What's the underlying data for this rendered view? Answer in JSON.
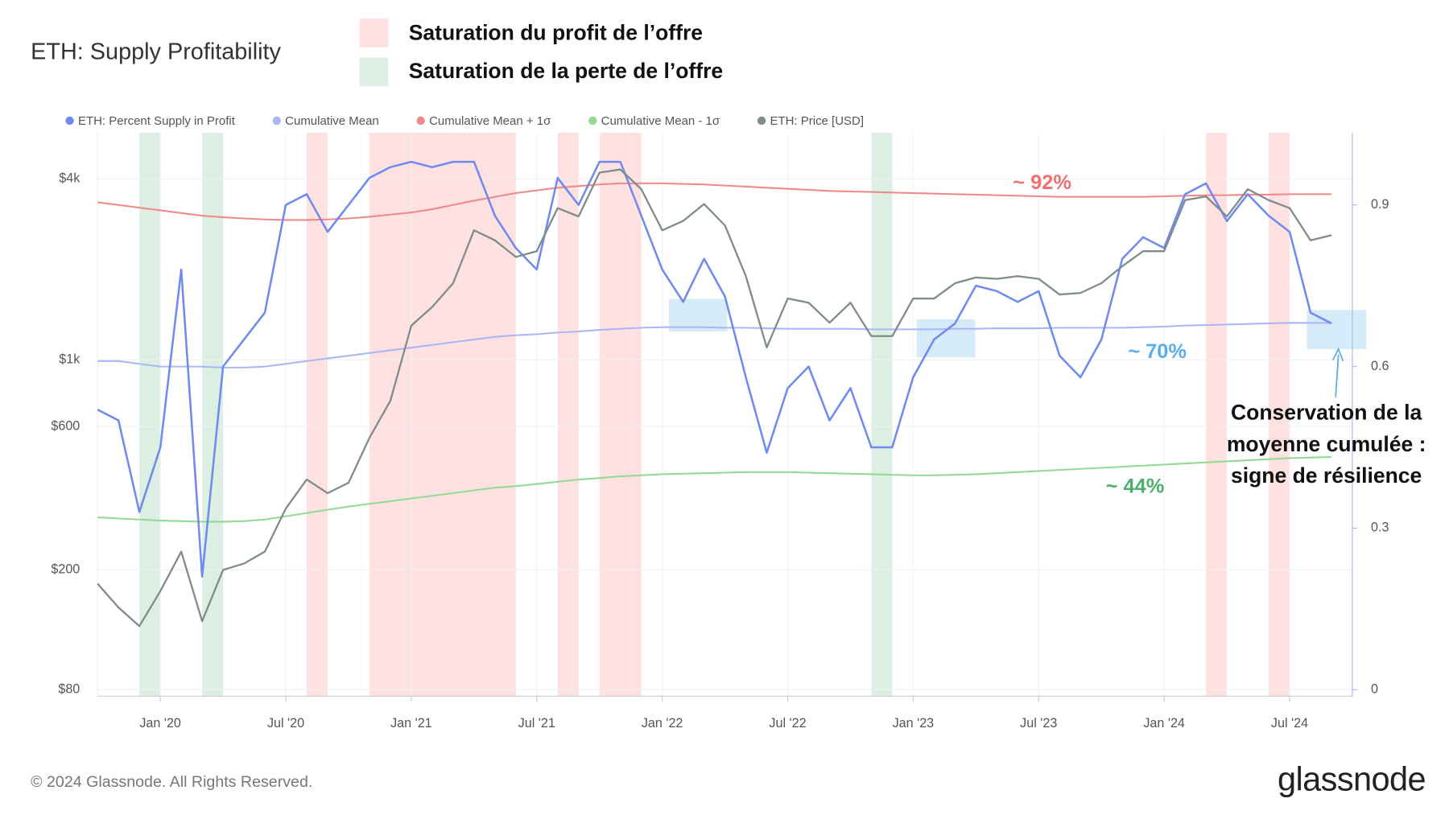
{
  "chart_data": {
    "type": "line",
    "title": "ETH: Supply Profitability",
    "x": [
      "2019-10",
      "2019-11",
      "2019-12",
      "2020-01",
      "2020-02",
      "2020-03",
      "2020-04",
      "2020-05",
      "2020-06",
      "2020-07",
      "2020-08",
      "2020-09",
      "2020-10",
      "2020-11",
      "2020-12",
      "2021-01",
      "2021-02",
      "2021-03",
      "2021-04",
      "2021-05",
      "2021-06",
      "2021-07",
      "2021-08",
      "2021-09",
      "2021-10",
      "2021-11",
      "2021-12",
      "2022-01",
      "2022-02",
      "2022-03",
      "2022-04",
      "2022-05",
      "2022-06",
      "2022-07",
      "2022-08",
      "2022-09",
      "2022-10",
      "2022-11",
      "2022-12",
      "2023-01",
      "2023-02",
      "2023-03",
      "2023-04",
      "2023-05",
      "2023-06",
      "2023-07",
      "2023-08",
      "2023-09",
      "2023-10",
      "2023-11",
      "2023-12",
      "2024-01",
      "2024-02",
      "2024-03",
      "2024-04",
      "2024-05",
      "2024-06",
      "2024-07",
      "2024-08",
      "2024-09"
    ],
    "series": [
      {
        "name": "Cumulative Mean + 1σ",
        "color": "#f08a8a",
        "axis": "y2",
        "values": [
          0.905,
          0.9,
          0.895,
          0.89,
          0.885,
          0.88,
          0.877,
          0.875,
          0.873,
          0.872,
          0.872,
          0.873,
          0.875,
          0.878,
          0.882,
          0.886,
          0.892,
          0.9,
          0.908,
          0.915,
          0.922,
          0.927,
          0.932,
          0.935,
          0.938,
          0.94,
          0.94,
          0.94,
          0.939,
          0.938,
          0.936,
          0.934,
          0.932,
          0.93,
          0.928,
          0.926,
          0.925,
          0.924,
          0.923,
          0.922,
          0.921,
          0.92,
          0.919,
          0.918,
          0.917,
          0.916,
          0.915,
          0.915,
          0.915,
          0.915,
          0.915,
          0.916,
          0.917,
          0.918,
          0.918,
          0.919,
          0.919,
          0.92,
          0.92,
          0.92
        ]
      },
      {
        "name": "Cumulative Mean - 1σ",
        "color": "#94d994",
        "axis": "y2",
        "values": [
          0.32,
          0.318,
          0.316,
          0.314,
          0.313,
          0.312,
          0.312,
          0.313,
          0.316,
          0.322,
          0.328,
          0.334,
          0.34,
          0.345,
          0.35,
          0.355,
          0.36,
          0.365,
          0.37,
          0.375,
          0.378,
          0.382,
          0.386,
          0.39,
          0.393,
          0.396,
          0.398,
          0.4,
          0.401,
          0.402,
          0.403,
          0.404,
          0.404,
          0.404,
          0.403,
          0.402,
          0.401,
          0.4,
          0.399,
          0.398,
          0.398,
          0.399,
          0.4,
          0.402,
          0.404,
          0.406,
          0.408,
          0.41,
          0.412,
          0.414,
          0.416,
          0.418,
          0.42,
          0.422,
          0.424,
          0.426,
          0.428,
          0.43,
          0.431,
          0.432
        ]
      },
      {
        "name": "Cumulative Mean",
        "color": "#aab6f5",
        "axis": "y2",
        "values": [
          0.61,
          0.61,
          0.605,
          0.6,
          0.6,
          0.6,
          0.598,
          0.598,
          0.6,
          0.605,
          0.61,
          0.615,
          0.62,
          0.625,
          0.63,
          0.635,
          0.64,
          0.645,
          0.65,
          0.655,
          0.658,
          0.66,
          0.663,
          0.665,
          0.668,
          0.67,
          0.672,
          0.673,
          0.673,
          0.673,
          0.672,
          0.672,
          0.671,
          0.67,
          0.67,
          0.67,
          0.67,
          0.669,
          0.669,
          0.669,
          0.669,
          0.67,
          0.67,
          0.671,
          0.671,
          0.671,
          0.672,
          0.672,
          0.672,
          0.672,
          0.673,
          0.674,
          0.676,
          0.677,
          0.678,
          0.679,
          0.68,
          0.681,
          0.681,
          0.681
        ]
      },
      {
        "name": "ETH: Percent Supply in Profit",
        "color": "#6f8af0",
        "axis": "y2",
        "values": [
          0.52,
          0.5,
          0.33,
          0.45,
          0.78,
          0.21,
          0.6,
          0.65,
          0.7,
          0.9,
          0.92,
          0.85,
          0.9,
          0.95,
          0.97,
          0.98,
          0.97,
          0.98,
          0.98,
          0.88,
          0.82,
          0.78,
          0.95,
          0.9,
          0.98,
          0.98,
          0.88,
          0.78,
          0.72,
          0.8,
          0.73,
          0.58,
          0.44,
          0.56,
          0.6,
          0.5,
          0.56,
          0.45,
          0.45,
          0.58,
          0.65,
          0.68,
          0.75,
          0.74,
          0.72,
          0.74,
          0.62,
          0.58,
          0.65,
          0.8,
          0.84,
          0.82,
          0.92,
          0.94,
          0.87,
          0.92,
          0.88,
          0.85,
          0.7,
          0.68
        ]
      },
      {
        "name": "ETH: Price [USD]",
        "color": "#7f8c8d",
        "axis": "y",
        "values": [
          180,
          150,
          130,
          170,
          230,
          135,
          200,
          210,
          230,
          320,
          400,
          360,
          390,
          550,
          730,
          1300,
          1500,
          1800,
          2700,
          2500,
          2200,
          2300,
          3200,
          3000,
          4200,
          4300,
          3700,
          2700,
          2900,
          3300,
          2800,
          1900,
          1100,
          1600,
          1550,
          1330,
          1550,
          1200,
          1200,
          1600,
          1600,
          1800,
          1880,
          1860,
          1900,
          1860,
          1650,
          1670,
          1800,
          2050,
          2300,
          2300,
          3400,
          3500,
          3000,
          3700,
          3400,
          3200,
          2500,
          2600
        ]
      }
    ],
    "legend_order": [
      3,
      2,
      0,
      1,
      4
    ],
    "xlim": [
      "2019-10",
      "2024-10"
    ],
    "xticks": [
      {
        "value": "2020-01",
        "label": "Jan '20"
      },
      {
        "value": "2020-07",
        "label": "Jul '20"
      },
      {
        "value": "2021-01",
        "label": "Jan '21"
      },
      {
        "value": "2021-07",
        "label": "Jul '21"
      },
      {
        "value": "2022-01",
        "label": "Jan '22"
      },
      {
        "value": "2022-07",
        "label": "Jul '22"
      },
      {
        "value": "2023-01",
        "label": "Jan '23"
      },
      {
        "value": "2023-07",
        "label": "Jul '23"
      },
      {
        "value": "2024-01",
        "label": "Jan '24"
      },
      {
        "value": "2024-07",
        "label": "Jul '24"
      }
    ],
    "ylim": [
      76,
      5700
    ],
    "log_y": true,
    "yticks": [
      {
        "value": 80,
        "label": "$80"
      },
      {
        "value": 200,
        "label": "$200"
      },
      {
        "value": 600,
        "label": "$600"
      },
      {
        "value": 1000,
        "label": "$1k"
      },
      {
        "value": 4000,
        "label": "$4k"
      }
    ],
    "y2lim": [
      -0.012,
      1.034
    ],
    "y2ticks": [
      0,
      0.3,
      0.6,
      0.9
    ],
    "grid": true,
    "highlights": [
      {
        "name": "Saturation du profit de l’offre",
        "color": "#ffe1e1",
        "ranges": [
          [
            "2020-08",
            "2020-09"
          ],
          [
            "2020-11",
            "2021-06"
          ],
          [
            "2021-08",
            "2021-09"
          ],
          [
            "2021-10",
            "2021-12"
          ],
          [
            "2024-03",
            "2024-04"
          ],
          [
            "2024-06",
            "2024-07"
          ]
        ]
      },
      {
        "name": "Saturation de la perte de l’offre",
        "color": "#dcefe3",
        "ranges": [
          [
            "2019-12",
            "2020-01"
          ],
          [
            "2020-03",
            "2020-04"
          ],
          [
            "2022-11",
            "2022-12"
          ]
        ]
      }
    ],
    "annotations": [
      {
        "text": "~ 92%",
        "color": "#f07070"
      },
      {
        "text": "~ 70%",
        "color": "#5aaee8"
      },
      {
        "text": "~ 44%",
        "color": "#4caf6a"
      }
    ],
    "callout": [
      "Conservation de la",
      "moyenne cumulée :",
      "signe de résilience"
    ]
  },
  "footer": "© 2024 Glassnode. All Rights Reserved.",
  "brand": "glassnode"
}
